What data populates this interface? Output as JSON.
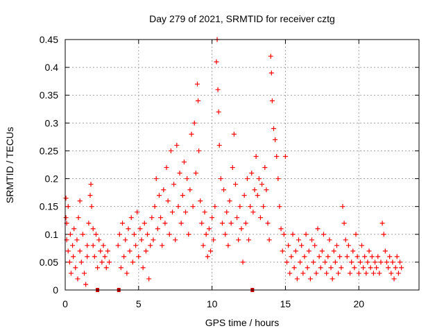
{
  "chart_data": {
    "type": "scatter",
    "title": "Day 279 of 2021, SRMTID for receiver cztg",
    "xlabel": "GPS time / hours",
    "ylabel": "SRMTID / TECUs",
    "xlim": [
      0,
      24.1
    ],
    "ylim": [
      0,
      0.45
    ],
    "grid": true,
    "marker": "plus",
    "xticks": [
      {
        "v": 0,
        "label": "0"
      },
      {
        "v": 5,
        "label": "5"
      },
      {
        "v": 10,
        "label": "10"
      },
      {
        "v": 15,
        "label": "15"
      },
      {
        "v": 20,
        "label": "20"
      }
    ],
    "yticks": [
      {
        "v": 0,
        "label": "0"
      },
      {
        "v": 0.05,
        "label": "0.05"
      },
      {
        "v": 0.1,
        "label": "0.1"
      },
      {
        "v": 0.15,
        "label": "0.15"
      },
      {
        "v": 0.2,
        "label": "0.2"
      },
      {
        "v": 0.25,
        "label": "0.25"
      },
      {
        "v": 0.3,
        "label": "0.3"
      },
      {
        "v": 0.35,
        "label": "0.35"
      },
      {
        "v": 0.4,
        "label": "0.4"
      },
      {
        "v": 0.45,
        "label": "0.45"
      }
    ],
    "series": [
      {
        "name": "SRMTID",
        "points": [
          [
            0.05,
            0.165
          ],
          [
            0.05,
            0.13
          ],
          [
            0.1,
            0.09
          ],
          [
            0.1,
            0.12
          ],
          [
            0.2,
            0.15
          ],
          [
            0.2,
            0.07
          ],
          [
            0.3,
            0.05
          ],
          [
            0.35,
            0.1
          ],
          [
            0.4,
            0.03
          ],
          [
            0.5,
            0.08
          ],
          [
            0.55,
            0.06
          ],
          [
            0.6,
            0.11
          ],
          [
            0.7,
            0.04
          ],
          [
            0.8,
            0.09
          ],
          [
            0.85,
            0.02
          ],
          [
            0.9,
            0.13
          ],
          [
            1.0,
            0.07
          ],
          [
            1.0,
            0.16
          ],
          [
            1.1,
            0.05
          ],
          [
            1.2,
            0.1
          ],
          [
            1.3,
            0.03
          ],
          [
            1.4,
            0.01
          ],
          [
            1.5,
            0.08
          ],
          [
            1.5,
            0.06
          ],
          [
            1.6,
            0.12
          ],
          [
            1.7,
            0.17
          ],
          [
            1.75,
            0.19
          ],
          [
            1.8,
            0.15
          ],
          [
            1.9,
            0.11
          ],
          [
            1.9,
            0.08
          ],
          [
            2.0,
            0.06
          ],
          [
            2.1,
            0.1
          ],
          [
            2.2,
            0.04
          ],
          [
            2.3,
            0.09
          ],
          [
            2.4,
            0.07
          ],
          [
            2.5,
            0.05
          ],
          [
            2.6,
            0.08
          ],
          [
            2.7,
            0.06
          ],
          [
            2.8,
            0.04
          ],
          [
            2.9,
            0.07
          ],
          [
            3.0,
            0.05
          ],
          [
            3.6,
            0.08
          ],
          [
            3.7,
            0.1
          ],
          [
            3.8,
            0.04
          ],
          [
            3.9,
            0.12
          ],
          [
            4.0,
            0.06
          ],
          [
            4.1,
            0.09
          ],
          [
            4.2,
            0.03
          ],
          [
            4.3,
            0.11
          ],
          [
            4.4,
            0.07
          ],
          [
            4.5,
            0.13
          ],
          [
            4.6,
            0.05
          ],
          [
            4.7,
            0.1
          ],
          [
            4.8,
            0.08
          ],
          [
            4.9,
            0.14
          ],
          [
            5.0,
            0.06
          ],
          [
            5.1,
            0.11
          ],
          [
            5.2,
            0.09
          ],
          [
            5.3,
            0.04
          ],
          [
            5.4,
            0.12
          ],
          [
            5.5,
            0.07
          ],
          [
            5.6,
            0.1
          ],
          [
            5.7,
            0.02
          ],
          [
            5.8,
            0.08
          ],
          [
            5.9,
            0.13
          ],
          [
            6.0,
            0.09
          ],
          [
            6.1,
            0.15
          ],
          [
            6.2,
            0.2
          ],
          [
            6.3,
            0.11
          ],
          [
            6.4,
            0.17
          ],
          [
            6.5,
            0.13
          ],
          [
            6.6,
            0.08
          ],
          [
            6.7,
            0.18
          ],
          [
            6.8,
            0.12
          ],
          [
            6.9,
            0.22
          ],
          [
            7.0,
            0.16
          ],
          [
            7.1,
            0.1
          ],
          [
            7.2,
            0.25
          ],
          [
            7.3,
            0.14
          ],
          [
            7.4,
            0.19
          ],
          [
            7.5,
            0.09
          ],
          [
            7.6,
            0.26
          ],
          [
            7.7,
            0.15
          ],
          [
            7.8,
            0.21
          ],
          [
            7.9,
            0.12
          ],
          [
            8.0,
            0.17
          ],
          [
            8.1,
            0.23
          ],
          [
            8.2,
            0.14
          ],
          [
            8.3,
            0.2
          ],
          [
            8.4,
            0.1
          ],
          [
            8.5,
            0.18
          ],
          [
            8.6,
            0.28
          ],
          [
            8.7,
            0.15
          ],
          [
            8.8,
            0.3
          ],
          [
            8.9,
            0.21
          ],
          [
            9.0,
            0.37
          ],
          [
            9.05,
            0.34
          ],
          [
            9.1,
            0.25
          ],
          [
            9.2,
            0.16
          ],
          [
            9.3,
            0.12
          ],
          [
            9.4,
            0.08
          ],
          [
            9.5,
            0.14
          ],
          [
            9.6,
            0.1
          ],
          [
            9.7,
            0.06
          ],
          [
            9.8,
            0.11
          ],
          [
            9.9,
            0.07
          ],
          [
            10.0,
            0.13
          ],
          [
            10.1,
            0.09
          ],
          [
            10.2,
            0.15
          ],
          [
            10.3,
            0.41
          ],
          [
            10.35,
            0.45
          ],
          [
            10.4,
            0.36
          ],
          [
            10.45,
            0.32
          ],
          [
            10.5,
            0.26
          ],
          [
            10.6,
            0.2
          ],
          [
            10.7,
            0.12
          ],
          [
            10.8,
            0.18
          ],
          [
            10.9,
            0.1
          ],
          [
            11.0,
            0.14
          ],
          [
            11.1,
            0.08
          ],
          [
            11.2,
            0.16
          ],
          [
            11.3,
            0.12
          ],
          [
            11.4,
            0.22
          ],
          [
            11.5,
            0.28
          ],
          [
            11.6,
            0.19
          ],
          [
            11.7,
            0.13
          ],
          [
            11.8,
            0.09
          ],
          [
            11.9,
            0.15
          ],
          [
            12.0,
            0.11
          ],
          [
            12.1,
            0.05
          ],
          [
            12.2,
            0.17
          ],
          [
            12.3,
            0.12
          ],
          [
            12.4,
            0.2
          ],
          [
            12.5,
            0.09
          ],
          [
            12.6,
            0.15
          ],
          [
            12.7,
            0.21
          ],
          [
            12.8,
            0.14
          ],
          [
            12.9,
            0.18
          ],
          [
            13.0,
            0.24
          ],
          [
            13.1,
            0.17
          ],
          [
            13.2,
            0.2
          ],
          [
            13.3,
            0.13
          ],
          [
            13.4,
            0.19
          ],
          [
            13.5,
            0.15
          ],
          [
            13.6,
            0.22
          ],
          [
            13.7,
            0.18
          ],
          [
            13.8,
            0.12
          ],
          [
            13.9,
            0.09
          ],
          [
            14.0,
            0.42
          ],
          [
            14.05,
            0.39
          ],
          [
            14.1,
            0.34
          ],
          [
            14.2,
            0.29
          ],
          [
            14.3,
            0.27
          ],
          [
            14.4,
            0.24
          ],
          [
            14.5,
            0.2
          ],
          [
            14.6,
            0.15
          ],
          [
            14.7,
            0.11
          ],
          [
            14.8,
            0.07
          ],
          [
            14.9,
            0.1
          ],
          [
            15.0,
            0.24
          ],
          [
            15.1,
            0.05
          ],
          [
            15.2,
            0.08
          ],
          [
            15.3,
            0.03
          ],
          [
            15.4,
            0.06
          ],
          [
            15.5,
            0.1
          ],
          [
            15.6,
            0.04
          ],
          [
            15.7,
            0.07
          ],
          [
            15.8,
            0.02
          ],
          [
            15.9,
            0.09
          ],
          [
            16.0,
            0.05
          ],
          [
            16.1,
            0.08
          ],
          [
            16.2,
            0.03
          ],
          [
            16.3,
            0.06
          ],
          [
            16.4,
            0.1
          ],
          [
            16.5,
            0.04
          ],
          [
            16.6,
            0.07
          ],
          [
            16.7,
            0.02
          ],
          [
            16.8,
            0.09
          ],
          [
            16.9,
            0.05
          ],
          [
            17.0,
            0.08
          ],
          [
            17.1,
            0.03
          ],
          [
            17.2,
            0.11
          ],
          [
            17.3,
            0.06
          ],
          [
            17.4,
            0.04
          ],
          [
            17.5,
            0.07
          ],
          [
            17.6,
            0.1
          ],
          [
            17.7,
            0.05
          ],
          [
            17.8,
            0.03
          ],
          [
            17.9,
            0.06
          ],
          [
            18.0,
            0.09
          ],
          [
            18.1,
            0.04
          ],
          [
            18.2,
            0.02
          ],
          [
            18.3,
            0.07
          ],
          [
            18.4,
            0.05
          ],
          [
            18.5,
            0.08
          ],
          [
            18.6,
            0.03
          ],
          [
            18.7,
            0.06
          ],
          [
            18.8,
            0.04
          ],
          [
            18.9,
            0.15
          ],
          [
            19.0,
            0.12
          ],
          [
            19.1,
            0.09
          ],
          [
            19.2,
            0.06
          ],
          [
            19.3,
            0.08
          ],
          [
            19.4,
            0.03
          ],
          [
            19.5,
            0.05
          ],
          [
            19.6,
            0.07
          ],
          [
            19.7,
            0.04
          ],
          [
            19.8,
            0.1
          ],
          [
            19.9,
            0.06
          ],
          [
            20.0,
            0.03
          ],
          [
            20.1,
            0.05
          ],
          [
            20.2,
            0.08
          ],
          [
            20.3,
            0.04
          ],
          [
            20.4,
            0.06
          ],
          [
            20.5,
            0.03
          ],
          [
            20.6,
            0.05
          ],
          [
            20.7,
            0.07
          ],
          [
            20.8,
            0.04
          ],
          [
            20.9,
            0.06
          ],
          [
            21.0,
            0.03
          ],
          [
            21.1,
            0.05
          ],
          [
            21.2,
            0.04
          ],
          [
            21.3,
            0.06
          ],
          [
            21.4,
            0.03
          ],
          [
            21.5,
            0.05
          ],
          [
            21.6,
            0.12
          ],
          [
            21.7,
            0.1
          ],
          [
            21.8,
            0.07
          ],
          [
            21.9,
            0.05
          ],
          [
            22.0,
            0.04
          ],
          [
            22.1,
            0.06
          ],
          [
            22.2,
            0.03
          ],
          [
            22.3,
            0.05
          ],
          [
            22.4,
            0.02
          ],
          [
            22.5,
            0.04
          ],
          [
            22.6,
            0.06
          ],
          [
            22.7,
            0.03
          ],
          [
            22.8,
            0.05
          ],
          [
            22.9,
            0.04
          ]
        ]
      },
      {
        "name": "gap markers",
        "points": [
          [
            2.2,
            0
          ],
          [
            3.65,
            0
          ],
          [
            12.75,
            0
          ]
        ]
      }
    ]
  },
  "colors": {
    "series": "#ff0000",
    "gap_markers": "#cc0000",
    "axis": "#000000",
    "grid": "#a0a0a0"
  }
}
